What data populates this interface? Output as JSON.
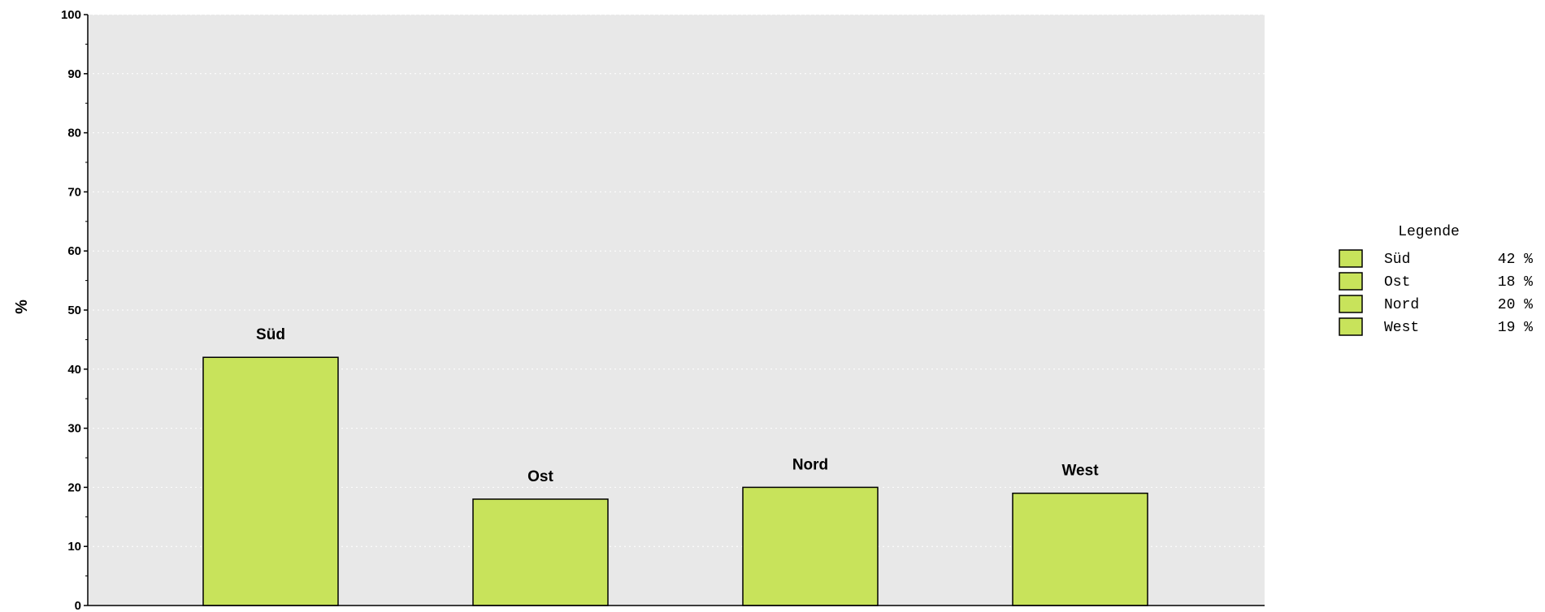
{
  "chart_data": {
    "type": "bar",
    "categories": [
      "Süd",
      "Ost",
      "Nord",
      "West"
    ],
    "values": [
      42,
      18,
      20,
      19
    ],
    "title": "",
    "xlabel": "",
    "ylabel": "%",
    "ylim": [
      0,
      100
    ],
    "yticks": [
      "0",
      "10",
      "20",
      "30",
      "40",
      "50",
      "60",
      "70",
      "80",
      "90",
      "100"
    ],
    "grid": true,
    "legend": {
      "title": "Legende",
      "placement": "right",
      "entries": [
        {
          "name": "Süd",
          "value": "42 %"
        },
        {
          "name": "Ost",
          "value": "18 %"
        },
        {
          "name": "Nord",
          "value": "20 %"
        },
        {
          "name": "West",
          "value": "19 %"
        }
      ]
    },
    "colors": {
      "bar": "#c8e35b",
      "plot_background": "#e8e8e8",
      "grid": "#ffffff"
    }
  }
}
